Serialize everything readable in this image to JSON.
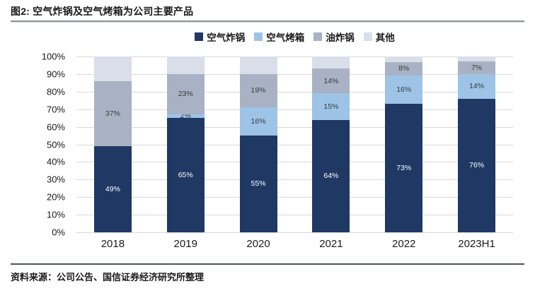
{
  "figure": {
    "title": "图2: 空气炸锅及空气烤箱为公司主要产品",
    "source": "资料来源：公司公告、国信证券经济研究所整理"
  },
  "colors": {
    "air_fryer": "#1F3864",
    "air_oven": "#9DC3E6",
    "oil_fryer": "#A8B2C4",
    "other": "#D9DEE8",
    "gridline": "#D9D9D9",
    "bar_label_light": "#FFFFFF",
    "bar_label_dark": "#3A3A3A"
  },
  "chart_data": {
    "type": "bar",
    "stacked": true,
    "title": "图2: 空气炸锅及空气烤箱为公司主要产品",
    "categories": [
      "2018",
      "2019",
      "2020",
      "2021",
      "2022",
      "2023H1"
    ],
    "series": [
      {
        "name": "空气炸锅",
        "color": "#1F3864",
        "label_color": "#FFFFFF",
        "show_labels": true,
        "values": [
          49,
          65,
          55,
          64,
          73,
          76
        ]
      },
      {
        "name": "空气烤箱",
        "color": "#9DC3E6",
        "label_color": "#3A3A3A",
        "show_labels": true,
        "values": [
          0,
          2,
          16,
          15,
          16,
          14
        ]
      },
      {
        "name": "油炸锅",
        "color": "#A8B2C4",
        "label_color": "#3A3A3A",
        "show_labels": true,
        "values": [
          37,
          23,
          19,
          14,
          8,
          7
        ]
      },
      {
        "name": "其他",
        "color": "#D9DEE8",
        "label_color": "#3A3A3A",
        "show_labels": false,
        "values": [
          14,
          10,
          10,
          7,
          3,
          3
        ]
      }
    ],
    "y_ticks": [
      "100%",
      "90%",
      "80%",
      "70%",
      "60%",
      "50%",
      "40%",
      "30%",
      "20%",
      "10%",
      "0%"
    ],
    "ylim": [
      0,
      100
    ],
    "grid": true,
    "legend_position": "top",
    "label_format": "percent",
    "xlabel": "",
    "ylabel": ""
  }
}
